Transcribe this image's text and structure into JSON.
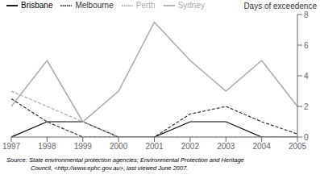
{
  "chart_data": {
    "type": "line",
    "y_label": "Days of exceedence",
    "x": [
      1997,
      1998,
      1999,
      2000,
      2001,
      2002,
      2003,
      2004,
      2005
    ],
    "xlim": [
      1997,
      2005
    ],
    "xticks": [
      1997,
      1998,
      1999,
      2000,
      2001,
      2002,
      2003,
      2004,
      2005
    ],
    "ylim": [
      0,
      8
    ],
    "yticks": [
      0,
      2,
      4,
      6,
      8
    ],
    "grid": false,
    "legend": "upper left",
    "series": [
      {
        "name": "Brisbane",
        "color": "#000000",
        "line_style": "solid",
        "values": [
          0,
          1,
          1,
          0,
          0,
          1,
          1,
          0,
          0
        ]
      },
      {
        "name": "Sydney",
        "color": "#aaaaaa",
        "line_style": "solid",
        "values": [
          2,
          5,
          1,
          3,
          7.5,
          5,
          3,
          5,
          2
        ]
      },
      {
        "name": "Melbourne",
        "color": "#333333",
        "line_style": "dashed",
        "values": [
          2.5,
          1,
          0,
          0,
          0,
          1.5,
          2,
          1,
          0.2
        ]
      },
      {
        "name": "Perth",
        "color": "#aaaaaa",
        "line_style": "dashed",
        "values": [
          3,
          2,
          1,
          0,
          0,
          0,
          0,
          0,
          0
        ]
      }
    ],
    "annotations": [
      "Source:  State environmental protection agencies; Environmental Protection and Heritage",
      "Council, <http://www.ephc.gov.au>, last viewed June 2007."
    ]
  }
}
